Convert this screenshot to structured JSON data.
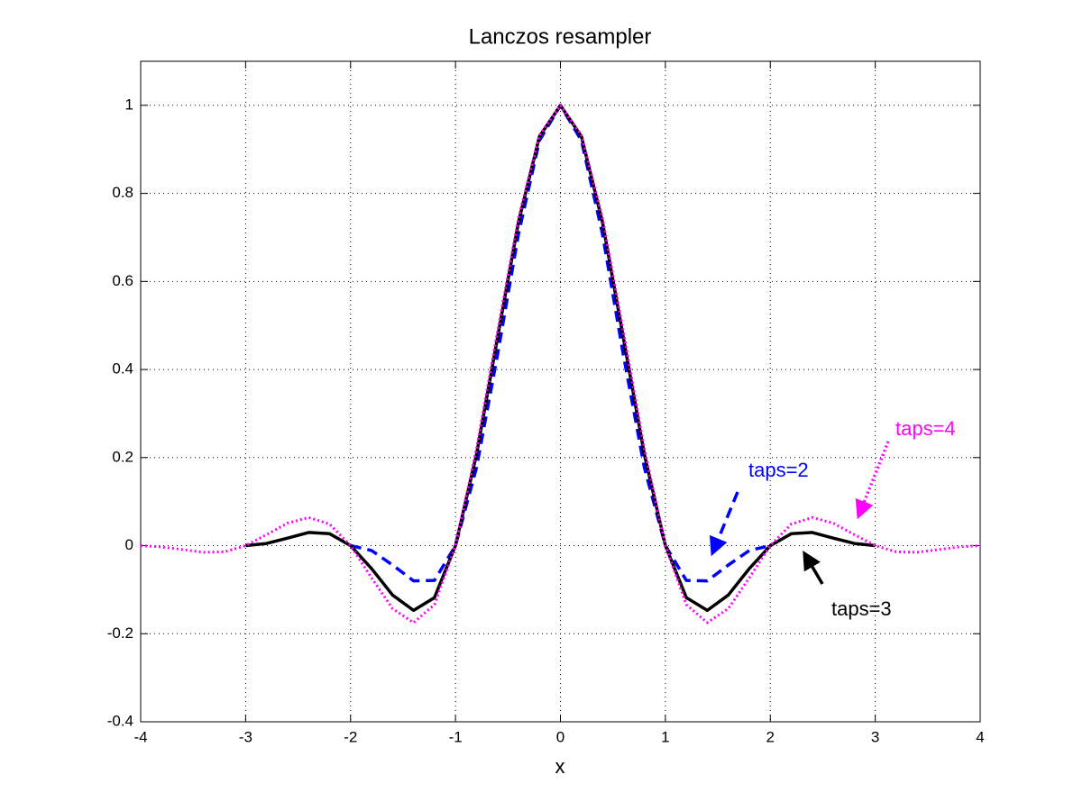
{
  "chart_data": {
    "type": "line",
    "title": "Lanczos resampler",
    "xlabel": "x",
    "x": [
      -4,
      -3.8,
      -3.6,
      -3.4,
      -3.2,
      -3,
      -2.8,
      -2.6,
      -2.4,
      -2.2,
      -2,
      -1.8,
      -1.6,
      -1.4,
      -1.2,
      -1,
      -0.8,
      -0.6,
      -0.4,
      -0.2,
      0,
      0.2,
      0.4,
      0.6,
      0.8,
      1,
      1.2,
      1.4,
      1.6,
      1.8,
      2,
      2.2,
      2.4,
      2.6,
      2.8,
      3,
      3.2,
      3.4,
      3.6,
      3.8,
      4
    ],
    "series": [
      {
        "name": "taps=2",
        "color": "#0000ff",
        "style": "dashed",
        "values": [
          null,
          null,
          null,
          null,
          null,
          null,
          null,
          null,
          null,
          null,
          0,
          -0.011,
          -0.044,
          -0.08,
          -0.079,
          0,
          0.177,
          0.433,
          0.708,
          0.92,
          1,
          0.92,
          0.708,
          0.433,
          0.177,
          0,
          -0.079,
          -0.08,
          -0.044,
          -0.011,
          0,
          null,
          null,
          null,
          null,
          null,
          null,
          null,
          null,
          null,
          null
        ]
      },
      {
        "name": "taps=3",
        "color": "#000000",
        "style": "solid",
        "values": [
          null,
          null,
          null,
          null,
          null,
          0,
          0.005,
          0.017,
          0.03,
          0.027,
          0,
          -0.052,
          -0.112,
          -0.147,
          -0.118,
          0,
          0.207,
          0.472,
          0.735,
          0.929,
          1,
          0.929,
          0.735,
          0.472,
          0.207,
          0,
          -0.118,
          -0.147,
          -0.112,
          -0.052,
          0,
          0.027,
          0.03,
          0.017,
          0.005,
          0,
          null,
          null,
          null,
          null,
          null
        ]
      },
      {
        "name": "taps=4",
        "color": "#ff00ff",
        "style": "dotted",
        "values": [
          0,
          -0.003,
          -0.009,
          -0.015,
          -0.014,
          0,
          0.025,
          0.051,
          0.064,
          0.049,
          0,
          -0.073,
          -0.143,
          -0.175,
          -0.134,
          0,
          0.219,
          0.486,
          0.744,
          0.932,
          1,
          0.932,
          0.744,
          0.486,
          0.219,
          0,
          -0.134,
          -0.175,
          -0.143,
          -0.073,
          0,
          0.049,
          0.064,
          0.051,
          0.025,
          0,
          -0.014,
          -0.015,
          -0.009,
          -0.003,
          0
        ]
      }
    ],
    "xlim": [
      -4,
      4
    ],
    "xticks": [
      -4,
      -3,
      -2,
      -1,
      0,
      1,
      2,
      3,
      4
    ],
    "ylim": [
      -0.4,
      1.1
    ],
    "yticks": [
      -0.4,
      -0.2,
      0,
      0.2,
      0.4,
      0.6,
      0.8,
      1
    ],
    "grid": true
  }
}
